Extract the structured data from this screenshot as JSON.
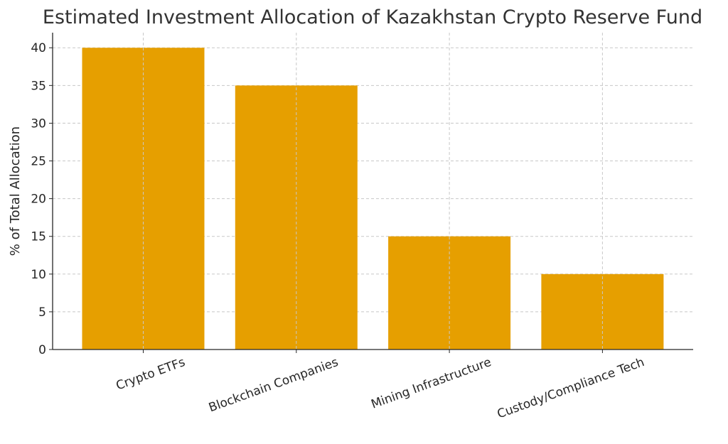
{
  "chart_data": {
    "type": "bar",
    "title": "Estimated Investment Allocation of Kazakhstan Crypto Reserve Fund",
    "xlabel": "",
    "ylabel": "% of Total Allocation",
    "categories": [
      "Crypto ETFs",
      "Blockchain Companies",
      "Mining Infrastructure",
      "Custody/Compliance Tech"
    ],
    "values": [
      40,
      35,
      15,
      10
    ],
    "ylim": [
      0,
      42
    ],
    "yticks": [
      0,
      5,
      10,
      15,
      20,
      25,
      30,
      35,
      40
    ],
    "grid": true,
    "bar_color": "#E69F00"
  }
}
